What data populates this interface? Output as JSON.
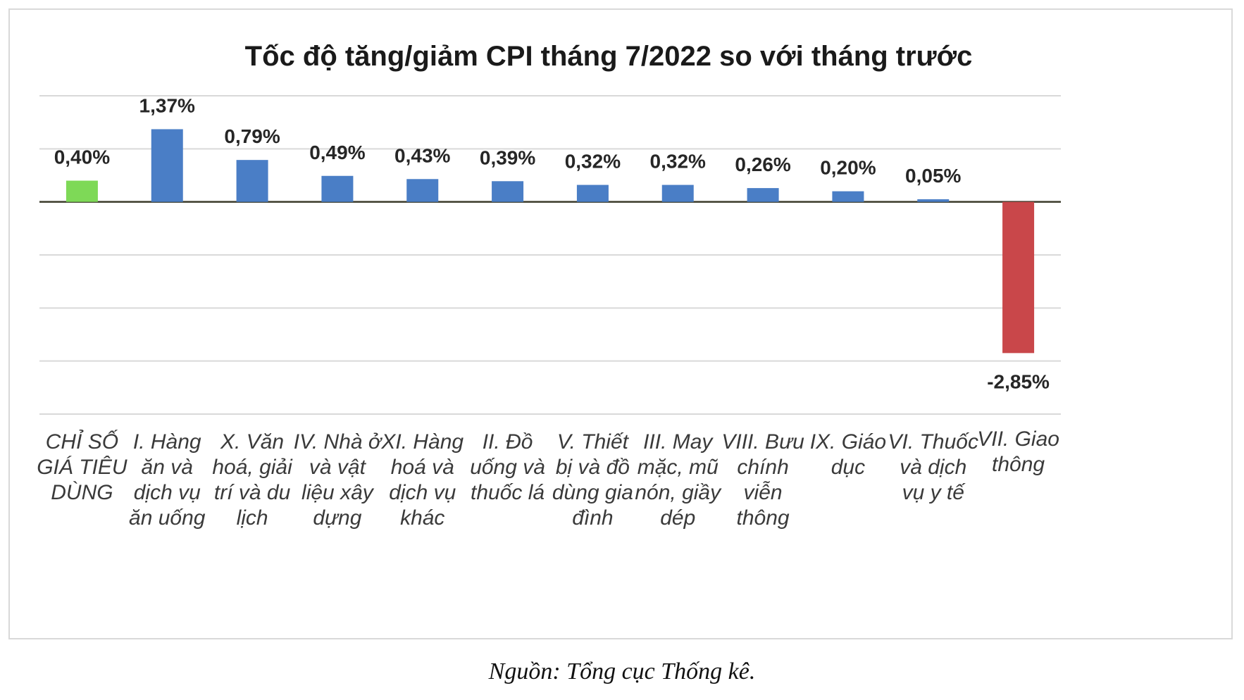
{
  "chart_data": {
    "type": "bar",
    "title": "Tốc độ tăng/giảm CPI tháng 7/2022 so với tháng trước",
    "xlabel": "",
    "ylabel": "",
    "categories": [
      "CHỈ SỐ GIÁ TIÊU DÙNG",
      "I. Hàng ăn và dịch vụ ăn uống",
      "X. Văn hoá, giải trí và du lịch",
      "IV. Nhà ở và vật liệu xây dựng",
      "XI. Hàng hoá và dịch vụ khác",
      "II. Đồ uống và thuốc lá",
      "V. Thiết bị và đồ dùng gia đình",
      "III. May mặc, mũ nón, giầy dép",
      "VIII. Bưu chính viễn thông",
      "IX. Giáo dục",
      "VI. Thuốc và dịch vụ y tế",
      "VII. Giao thông"
    ],
    "values": [
      0.4,
      1.37,
      0.79,
      0.49,
      0.43,
      0.39,
      0.32,
      0.32,
      0.26,
      0.2,
      0.05,
      -2.85
    ],
    "data_labels": [
      "0,40%",
      "1,37%",
      "0,79%",
      "0,49%",
      "0,43%",
      "0,39%",
      "0,32%",
      "0,32%",
      "0,26%",
      "0,20%",
      "0,05%",
      "-2,85%"
    ],
    "ylim": [
      -4,
      2
    ],
    "grid": true,
    "legend": "none",
    "colors": {
      "highlight": "#7ed957",
      "positive": "#4a7ec6",
      "negative": "#c9474a",
      "gridline": "#d9d9d9",
      "baseline": "#3a3a2a"
    }
  },
  "source_note": "Nguồn: Tổng cục Thống kê."
}
